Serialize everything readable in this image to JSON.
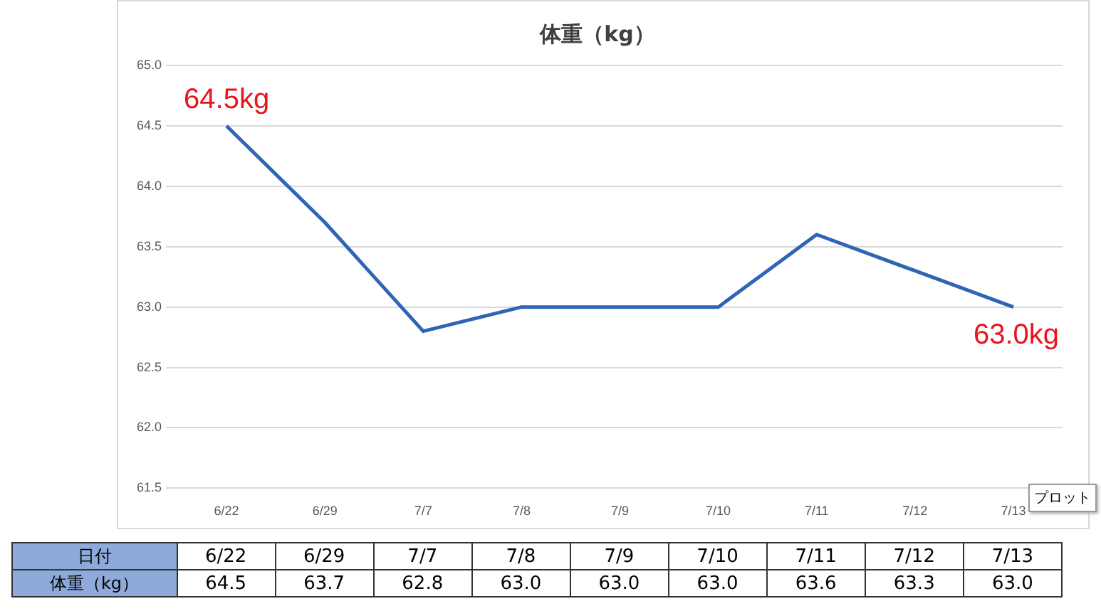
{
  "chart_data": {
    "type": "line",
    "title": "体重（kg）",
    "xlabel": "日付",
    "categories": [
      "6/22",
      "6/29",
      "7/7",
      "7/8",
      "7/9",
      "7/10",
      "7/11",
      "7/12",
      "7/13"
    ],
    "series": [
      {
        "name": "体重（kg）",
        "color": "#2f65b5",
        "values": [
          64.5,
          63.7,
          62.8,
          63.0,
          63.0,
          63.0,
          63.6,
          63.3,
          63.0
        ],
        "value_labels": [
          "64.5",
          "63.7",
          "62.8",
          "63.0",
          "63.0",
          "63.0",
          "63.6",
          "63.3",
          "63.0"
        ]
      }
    ],
    "ylim": [
      61.5,
      65.0
    ],
    "yticks": [
      {
        "value": 61.5,
        "label": "61.5"
      },
      {
        "value": 62,
        "label": "62.0"
      },
      {
        "value": 62.5,
        "label": "62.5"
      },
      {
        "value": 63,
        "label": "63.0"
      },
      {
        "value": 63.5,
        "label": "63.5"
      },
      {
        "value": 64,
        "label": "64.0"
      },
      {
        "value": 64.5,
        "label": "64.5"
      },
      {
        "value": 65,
        "label": "65.0"
      }
    ],
    "grid": "y",
    "legend": false,
    "marker": "none",
    "line_style": "solid",
    "data_labels": true,
    "annotations": [
      {
        "text": "64.5kg",
        "x": "6/22",
        "y": 64.5
      },
      {
        "text": "63.0kg",
        "x": "7/13",
        "y": 63.0
      },
      "プロット"
    ]
  }
}
